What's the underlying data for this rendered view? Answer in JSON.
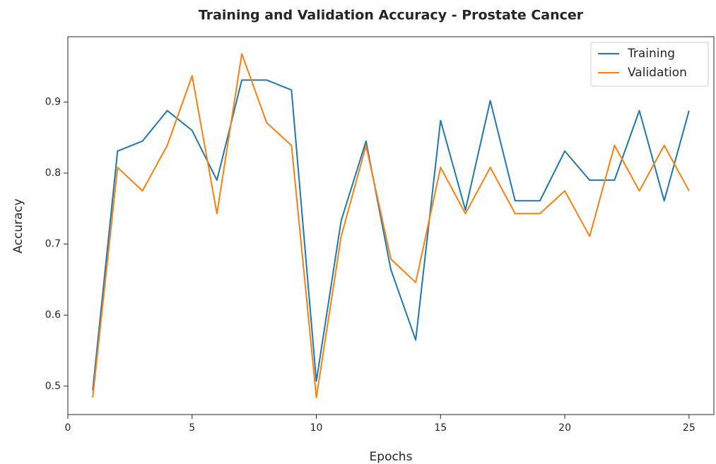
{
  "chart_data": {
    "type": "line",
    "title": "Training and Validation Accuracy - Prostate Cancer",
    "xlabel": "Epochs",
    "ylabel": "Accuracy",
    "x": [
      1,
      2,
      3,
      4,
      5,
      6,
      7,
      8,
      9,
      10,
      11,
      12,
      13,
      14,
      15,
      16,
      17,
      18,
      19,
      20,
      21,
      22,
      23,
      24,
      25
    ],
    "series": [
      {
        "name": "Training",
        "color": "#1f77b4",
        "values": [
          0.494,
          0.831,
          0.845,
          0.888,
          0.86,
          0.79,
          0.931,
          0.931,
          0.917,
          0.507,
          0.733,
          0.845,
          0.664,
          0.565,
          0.874,
          0.748,
          0.902,
          0.761,
          0.761,
          0.831,
          0.79,
          0.79,
          0.888,
          0.761,
          0.888
        ]
      },
      {
        "name": "Validation",
        "color": "#ff7f0e",
        "values": [
          0.484,
          0.808,
          0.775,
          0.839,
          0.937,
          0.743,
          0.968,
          0.871,
          0.839,
          0.484,
          0.711,
          0.839,
          0.679,
          0.646,
          0.808,
          0.743,
          0.808,
          0.743,
          0.743,
          0.775,
          0.711,
          0.839,
          0.775,
          0.839,
          0.775
        ]
      }
    ],
    "xlim": [
      0,
      26
    ],
    "xticks": [
      0,
      5,
      10,
      15,
      20,
      25
    ],
    "ylim": [
      0.46,
      0.992
    ],
    "yticks": [
      0.5,
      0.6,
      0.7,
      0.8,
      0.9
    ],
    "grid": false,
    "legend": "upper right"
  }
}
